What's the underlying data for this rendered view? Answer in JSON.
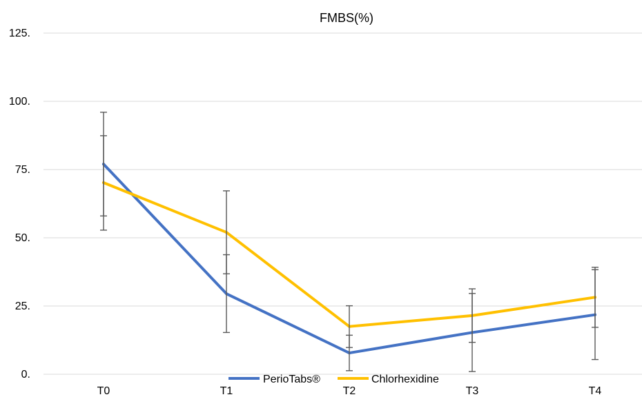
{
  "chart_data": {
    "type": "line",
    "title": "FMBS(%)",
    "xlabel": "",
    "ylabel": "",
    "categories": [
      "T0",
      "T1",
      "T2",
      "T3",
      "T4"
    ],
    "y_ticks": [
      "0.",
      "25.",
      "50.",
      "75.",
      "100.",
      "125."
    ],
    "ylim": [
      0,
      125
    ],
    "grid": true,
    "legend_position": "bottom",
    "series": [
      {
        "name": "PerioTabs®",
        "color": "#4472C4",
        "values": [
          77,
          29.5,
          7.8,
          15.3,
          21.8
        ],
        "err_low": [
          58,
          15.3,
          1.3,
          1.0,
          5.4
        ],
        "err_high": [
          96,
          43.8,
          14.3,
          29.6,
          38.3
        ]
      },
      {
        "name": "Chlorhexidine",
        "color": "#FFC000",
        "values": [
          70.2,
          52,
          17.5,
          21.5,
          28.2
        ],
        "err_low": [
          52.8,
          36.8,
          9.8,
          11.7,
          17.2
        ],
        "err_high": [
          87.4,
          67.2,
          25.1,
          31.3,
          39.2
        ]
      }
    ]
  }
}
